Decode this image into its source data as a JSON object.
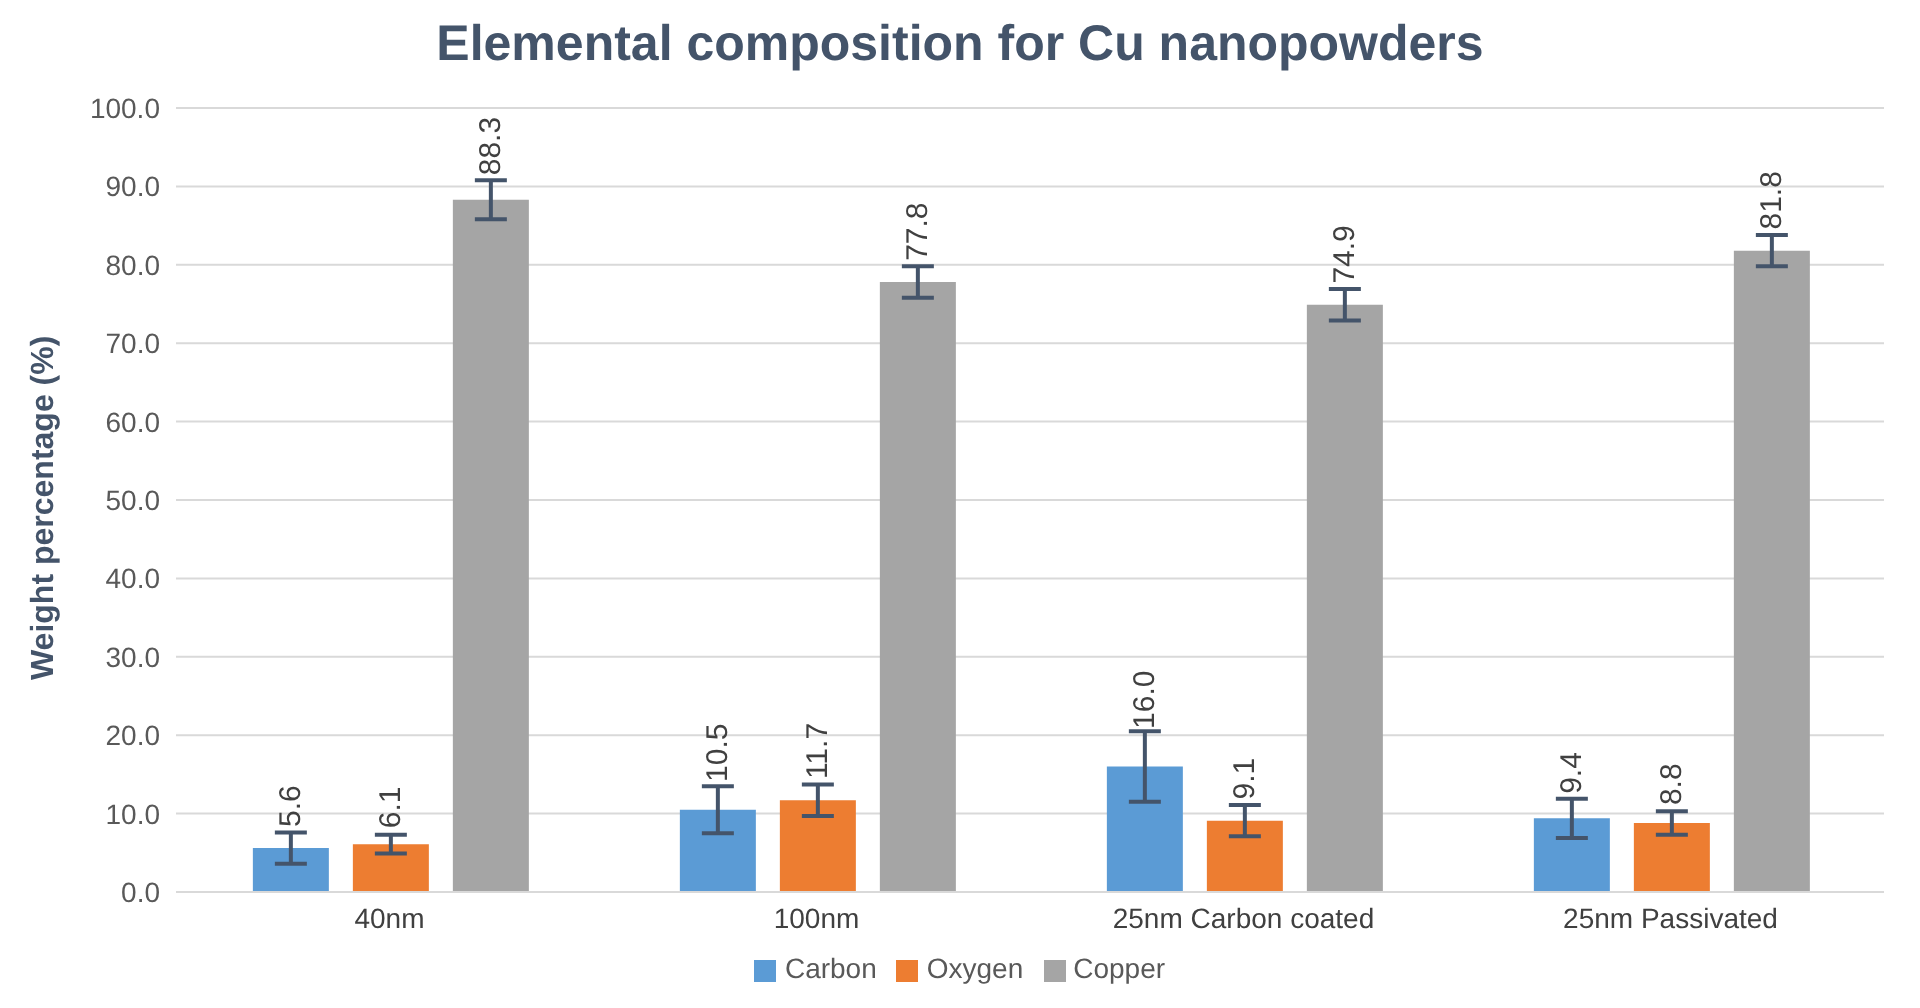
{
  "chart_data": {
    "type": "bar",
    "title": "Elemental composition for Cu nanopowders",
    "ylabel": "Weight percentage (%)",
    "categories": [
      "40nm",
      "100nm",
      "25nm Carbon coated",
      "25nm Passivated"
    ],
    "series": [
      {
        "name": "Carbon",
        "color": "#5b9bd5",
        "values": [
          5.6,
          10.5,
          16.0,
          9.4
        ],
        "errors": [
          2,
          3,
          4.5,
          2.5
        ],
        "value_labels": [
          "5.6",
          "10.5",
          "16.0",
          "9.4"
        ]
      },
      {
        "name": "Oxygen",
        "color": "#ed7d31",
        "values": [
          6.1,
          11.7,
          9.1,
          8.8
        ],
        "errors": [
          1.2,
          2,
          2,
          1.5
        ],
        "value_labels": [
          "6.1",
          "11.7",
          "9.1",
          "8.8"
        ]
      },
      {
        "name": "Copper",
        "color": "#a5a5a5",
        "values": [
          88.3,
          77.8,
          74.9,
          81.8
        ],
        "errors": [
          2.5,
          2,
          2,
          2
        ],
        "value_labels": [
          "88.3",
          "77.8",
          "74.9",
          "81.8"
        ]
      }
    ],
    "ylim": [
      0,
      100
    ],
    "yticks": [
      {
        "value": 0,
        "label": "0.0"
      },
      {
        "value": 10,
        "label": "10.0"
      },
      {
        "value": 20,
        "label": "20.0"
      },
      {
        "value": 30,
        "label": "30.0"
      },
      {
        "value": 40,
        "label": "40.0"
      },
      {
        "value": 50,
        "label": "50.0"
      },
      {
        "value": 60,
        "label": "60.0"
      },
      {
        "value": 70,
        "label": "70.0"
      },
      {
        "value": 80,
        "label": "80.0"
      },
      {
        "value": 90,
        "label": "90.0"
      },
      {
        "value": 100,
        "label": "100.0"
      }
    ],
    "grid": "y",
    "legend": "bottom"
  }
}
